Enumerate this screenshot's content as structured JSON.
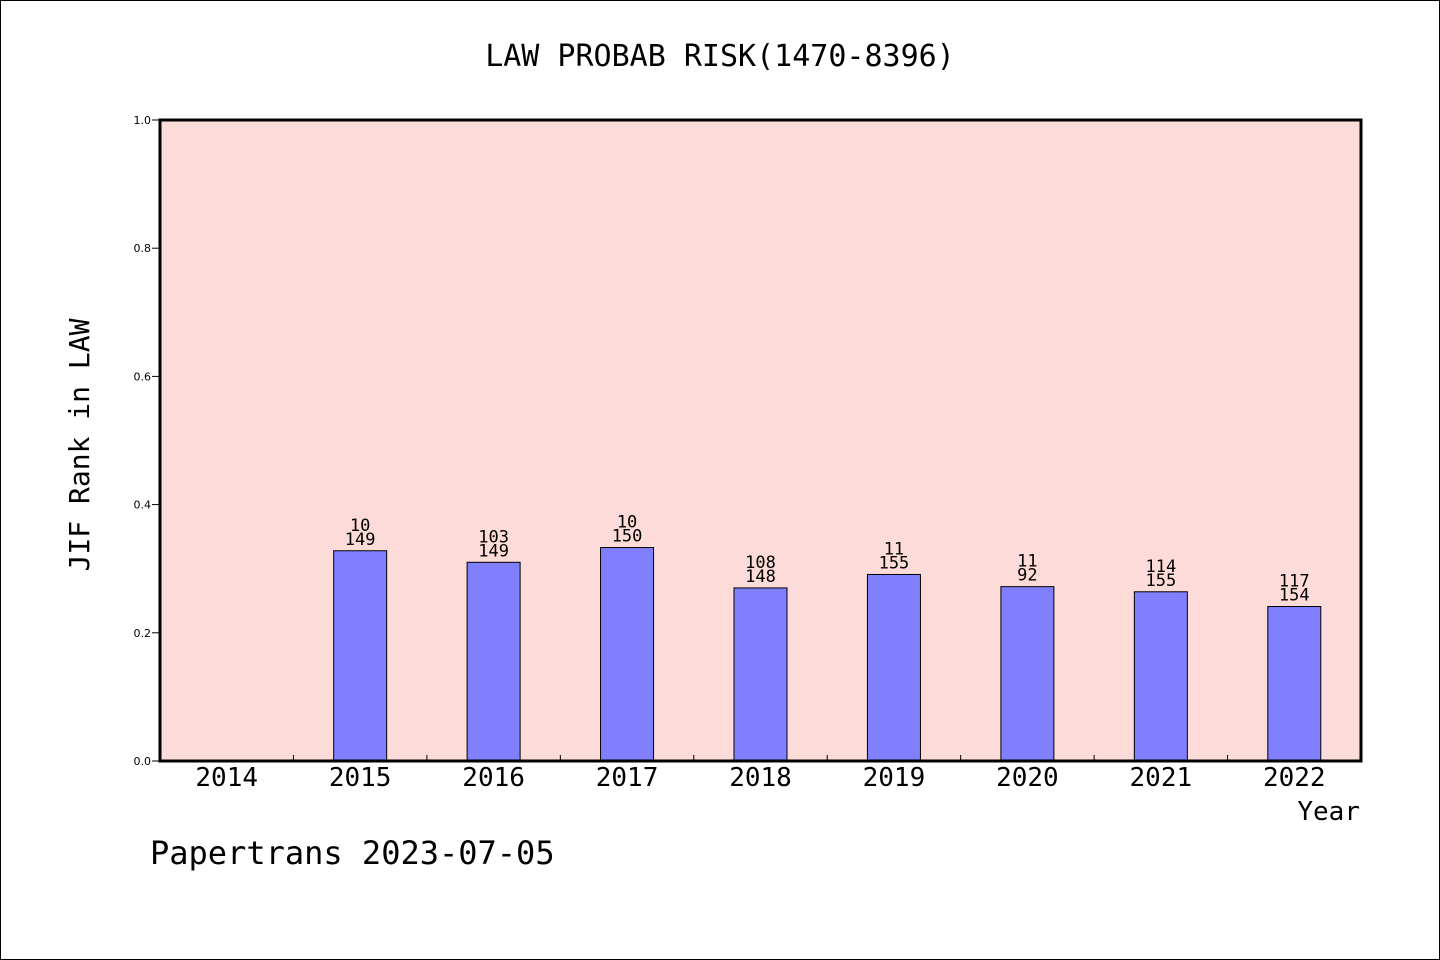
{
  "chart_data": {
    "type": "bar",
    "title": "LAW PROBAB RISK(1470-8396)",
    "xlabel": "Year",
    "ylabel": "JIF Rank in LAW",
    "ylim": [
      0,
      1.0
    ],
    "yticks": [
      "0.0",
      "0.2",
      "0.4",
      "0.6",
      "0.8",
      "1.0"
    ],
    "categories": [
      "2014",
      "2015",
      "2016",
      "2017",
      "2018",
      "2019",
      "2020",
      "2021",
      "2022"
    ],
    "values": [
      null,
      0.328,
      0.31,
      0.333,
      0.27,
      0.291,
      0.272,
      0.264,
      0.241
    ],
    "labels": [
      null,
      {
        "rank": "10",
        "total": "149"
      },
      {
        "rank": "103",
        "total": "149"
      },
      {
        "rank": "10",
        "total": "150"
      },
      {
        "rank": "108",
        "total": "148"
      },
      {
        "rank": "11",
        "total": "155"
      },
      {
        "rank": "11",
        "total": "92"
      },
      {
        "rank": "114",
        "total": "155"
      },
      {
        "rank": "117",
        "total": "154"
      }
    ],
    "grid": false,
    "colors": {
      "plot_background": "#fddbd8",
      "bar_fill": "#8080ff",
      "bar_edge": "#000000"
    }
  },
  "footer": {
    "credit": "Papertrans 2023-07-05"
  }
}
